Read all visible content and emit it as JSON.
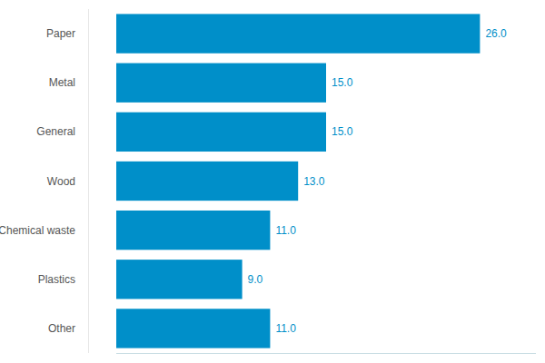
{
  "chart_data": {
    "type": "bar",
    "orientation": "horizontal",
    "categories": [
      "Paper",
      "Metal",
      "General",
      "Wood",
      "Chemical waste",
      "Plastics",
      "Other"
    ],
    "values": [
      26,
      15,
      15,
      13,
      11,
      9,
      11
    ],
    "value_labels": [
      "26.0",
      "15.0",
      "15.0",
      "13.0",
      "11.0",
      "9.0",
      "11.0"
    ],
    "color": "#008fc9",
    "xlim": [
      0,
      30
    ],
    "data_labels": true,
    "tick_labels": "y",
    "grid": false
  }
}
